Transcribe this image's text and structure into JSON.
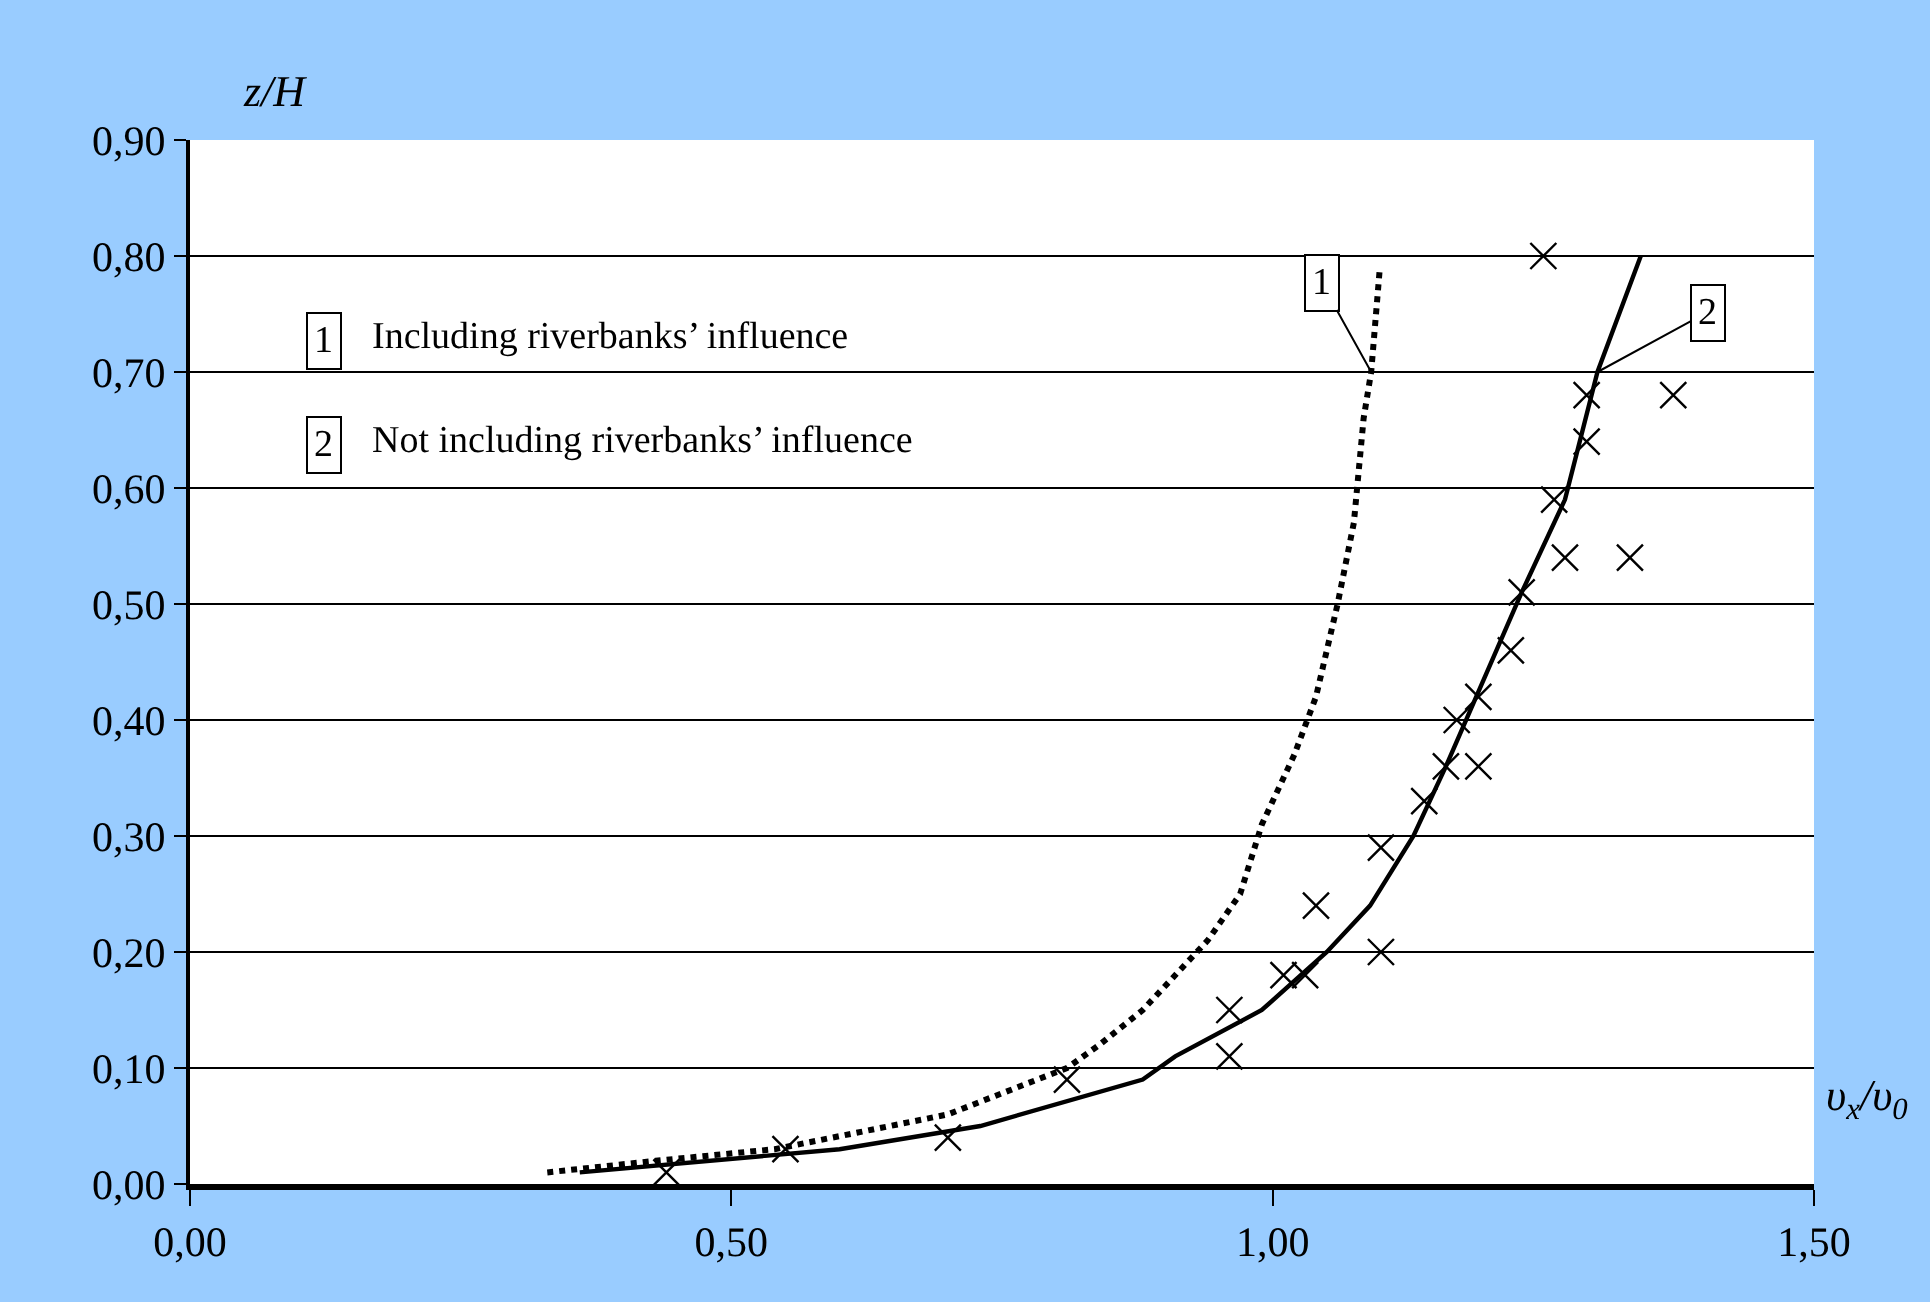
{
  "chart_data": {
    "type": "line",
    "xlabel": "υ$_{x}$/υ$_{0}$",
    "ylabel": "z/H",
    "xlim": [
      0,
      1.5
    ],
    "ylim": [
      0,
      0.9
    ],
    "xticks": [
      {
        "value": 0,
        "label": "0,00"
      },
      {
        "value": 0.5,
        "label": "0,50"
      },
      {
        "value": 1,
        "label": "1,00"
      },
      {
        "value": 1.5,
        "label": "1,50"
      }
    ],
    "yticks": [
      {
        "value": 0,
        "label": "0,00"
      },
      {
        "value": 0.1,
        "label": "0,10"
      },
      {
        "value": 0.2,
        "label": "0,20"
      },
      {
        "value": 0.3,
        "label": "0,30"
      },
      {
        "value": 0.4,
        "label": "0,40"
      },
      {
        "value": 0.5,
        "label": "0,50"
      },
      {
        "value": 0.6,
        "label": "0,60"
      },
      {
        "value": 0.7,
        "label": "0,70"
      },
      {
        "value": 0.8,
        "label": "0,80"
      },
      {
        "value": 0.9,
        "label": "0,90"
      }
    ],
    "grid": "y",
    "legend": false,
    "series": [
      {
        "name": "1",
        "line_style": "dotted",
        "marker": "none",
        "color": "#000000",
        "x": [
          0.33,
          0.43,
          0.54,
          0.7,
          0.81,
          0.84,
          0.88,
          0.94,
          0.97,
          0.99,
          1.02,
          1.04,
          1.06,
          1.075,
          1.084,
          1.091,
          1.099
        ],
        "values": [
          0.01,
          0.02,
          0.03,
          0.06,
          0.1,
          0.12,
          0.15,
          0.21,
          0.25,
          0.31,
          0.37,
          0.42,
          0.5,
          0.57,
          0.66,
          0.7,
          0.79
        ]
      },
      {
        "name": "2",
        "line_style": "solid",
        "marker": "none",
        "color": "#000000",
        "x": [
          0.36,
          0.6,
          0.73,
          0.88,
          0.91,
          0.99,
          1.05,
          1.09,
          1.13,
          1.16,
          1.23,
          1.27,
          1.3,
          1.34
        ],
        "values": [
          0.01,
          0.03,
          0.05,
          0.09,
          0.11,
          0.15,
          0.2,
          0.24,
          0.3,
          0.36,
          0.51,
          0.59,
          0.7,
          0.8
        ]
      },
      {
        "type": "scatter",
        "marker": "cross",
        "color": "#000000",
        "x": [
          0.44,
          0.55,
          0.7,
          0.81,
          0.96,
          0.96,
          1.01,
          1.03,
          1.04,
          1.1,
          1.1,
          1.14,
          1.16,
          1.19,
          1.17,
          1.19,
          1.22,
          1.23,
          1.26,
          1.27,
          1.33,
          1.29,
          1.29,
          1.37,
          1.25
        ],
        "values": [
          0.01,
          0.03,
          0.04,
          0.09,
          0.11,
          0.15,
          0.18,
          0.18,
          0.24,
          0.2,
          0.29,
          0.33,
          0.36,
          0.36,
          0.4,
          0.42,
          0.46,
          0.51,
          0.59,
          0.54,
          0.54,
          0.64,
          0.68,
          0.68,
          0.8
        ]
      }
    ],
    "annotations": [
      "Including riverbanks’ influence",
      "Not including riverbanks’ influence"
    ]
  }
}
